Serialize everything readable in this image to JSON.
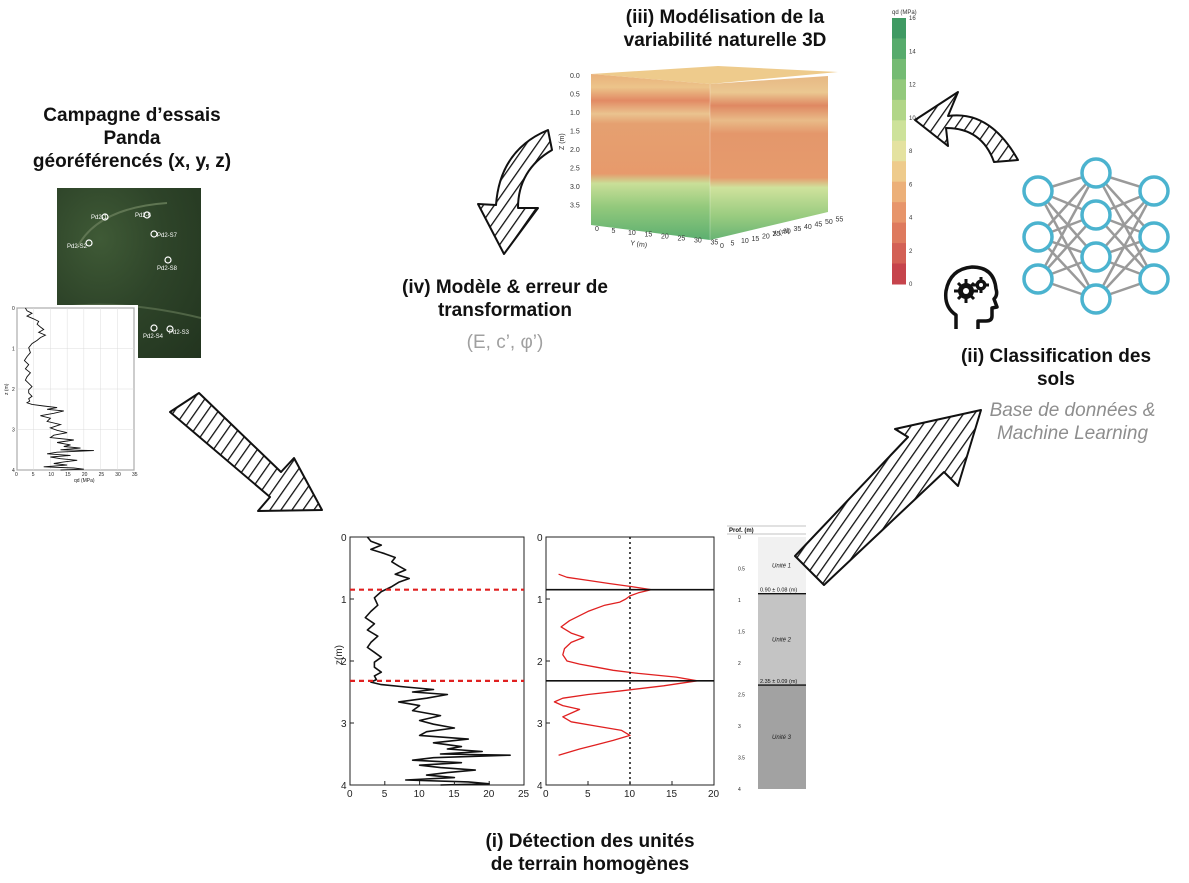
{
  "campaign": {
    "title_lines": [
      "Campagne d’essais",
      "Panda",
      "géoréférencés (x, y, z)"
    ],
    "map_labels": [
      "Pd2-1",
      "Pd2-6",
      "Pd2-S2",
      "Pd2-S7",
      "Pd2-S8",
      "Pd2-S4",
      "Pd2-S3"
    ],
    "profile_axes": {
      "xlabel": "qd (MPa)",
      "ylabel": "z (m)",
      "x_ticks": [
        "0",
        "5",
        "10",
        "15",
        "20",
        "25",
        "30",
        "35"
      ],
      "y_ticks": [
        "0",
        "1",
        "2",
        "3",
        "4"
      ]
    }
  },
  "model3d": {
    "title_lines": [
      "(iii) Modélisation de la",
      "variabilité naturelle 3D"
    ],
    "z_label": "Z (m)",
    "y_label": "Y (m)",
    "x_label": "X (m)",
    "z_ticks": [
      "0.0",
      "0.5",
      "1.0",
      "1.5",
      "2.0",
      "2.5",
      "3.0",
      "3.5"
    ],
    "y_ticks": [
      "0",
      "5",
      "10",
      "15",
      "20",
      "25",
      "30",
      "35"
    ],
    "x_ticks": [
      "0",
      "5",
      "10",
      "15",
      "20",
      "25",
      "30",
      "35",
      "40",
      "45",
      "50",
      "55"
    ],
    "colorbar": {
      "label": "qd (MPa)",
      "ticks": [
        "16",
        "14",
        "12",
        "10",
        "8",
        "6",
        "4",
        "2",
        "0"
      ],
      "colors": [
        "#3f9a63",
        "#56ab6c",
        "#74bb73",
        "#93c97c",
        "#b1d688",
        "#cde29a",
        "#e4e2a0",
        "#eecb8c",
        "#ecb079",
        "#e7956b",
        "#de7a5e",
        "#d36055",
        "#c6444c"
      ]
    }
  },
  "model_error": {
    "title_lines": [
      "(iv) Modèle & erreur de",
      "transformation"
    ],
    "params": "(E, c’, φ’)"
  },
  "classification": {
    "title_lines": [
      "(ii) Classification des",
      "sols"
    ],
    "subtitle_lines": [
      "Base de données &",
      "Machine Learning"
    ],
    "nn_color": "#4bb3cf"
  },
  "detection": {
    "title_lines": [
      "(i) Détection des unités",
      "de terrain homogènes"
    ],
    "chart_data": [
      {
        "type": "line",
        "name_hint": "qd profile",
        "xlim": [
          0,
          25
        ],
        "ylim": [
          4,
          0
        ],
        "ylabel": "z(m)",
        "x_ticks": [
          "0",
          "5",
          "10",
          "15",
          "20",
          "25"
        ],
        "y_ticks": [
          "0",
          "1",
          "2",
          "3",
          "4"
        ],
        "boundaries_depth": [
          0.85,
          2.32
        ],
        "x": [
          2.5,
          3,
          4.5,
          3,
          5,
          6.5,
          6,
          7,
          8,
          6.5,
          8.5,
          7,
          6,
          4.5,
          3.5,
          4,
          3,
          2.2,
          3.5,
          2.5,
          4,
          3,
          2.5,
          3.5,
          4.5,
          3.5,
          3.5,
          4.5,
          3.5,
          3.8,
          3,
          4.5,
          8,
          12,
          9,
          14,
          11,
          7,
          10,
          9,
          13,
          10,
          12,
          15,
          11,
          10,
          17,
          12,
          16,
          14,
          19,
          13,
          23,
          12,
          9,
          16,
          10,
          13,
          18,
          14,
          11,
          15,
          8,
          17,
          20,
          13
        ],
        "y": [
          0.0,
          0.07,
          0.13,
          0.2,
          0.27,
          0.33,
          0.4,
          0.47,
          0.53,
          0.6,
          0.67,
          0.73,
          0.8,
          0.88,
          0.98,
          1.1,
          1.2,
          1.3,
          1.4,
          1.5,
          1.6,
          1.7,
          1.78,
          1.86,
          1.94,
          2.02,
          2.1,
          2.18,
          2.24,
          2.3,
          2.34,
          2.38,
          2.42,
          2.46,
          2.5,
          2.54,
          2.6,
          2.66,
          2.72,
          2.8,
          2.88,
          2.96,
          3.02,
          3.08,
          3.14,
          3.2,
          3.26,
          3.32,
          3.38,
          3.42,
          3.46,
          3.5,
          3.52,
          3.56,
          3.6,
          3.64,
          3.68,
          3.72,
          3.76,
          3.8,
          3.84,
          3.88,
          3.92,
          3.95,
          3.98,
          4.0
        ]
      },
      {
        "type": "line",
        "name_hint": "detection statistic",
        "xlim": [
          0,
          20
        ],
        "ylim": [
          4,
          0
        ],
        "threshold_x": 10,
        "boundaries_depth": [
          0.85,
          2.32
        ],
        "x_ticks": [
          "0",
          "5",
          "10",
          "15",
          "20"
        ],
        "y_ticks": [
          "0",
          "1",
          "2",
          "3",
          "4"
        ],
        "x": [
          1.5,
          2.5,
          5,
          7.5,
          10.2,
          12.5,
          11,
          10,
          9.5,
          8.8,
          7,
          5,
          2.8,
          1.8,
          3,
          4.5,
          3,
          2.2,
          2,
          2.5,
          4,
          6,
          8,
          11,
          15.5,
          18,
          14,
          9,
          5,
          2,
          1,
          2,
          4,
          3,
          2,
          3,
          6,
          9,
          10,
          8,
          6,
          4,
          2.5,
          1.5
        ],
        "y": [
          0.6,
          0.65,
          0.7,
          0.75,
          0.8,
          0.85,
          0.9,
          0.95,
          1.0,
          1.05,
          1.1,
          1.2,
          1.35,
          1.45,
          1.55,
          1.62,
          1.7,
          1.8,
          1.9,
          2.0,
          2.05,
          2.1,
          2.15,
          2.2,
          2.26,
          2.32,
          2.4,
          2.48,
          2.54,
          2.6,
          2.66,
          2.72,
          2.78,
          2.84,
          2.9,
          2.98,
          3.05,
          3.12,
          3.2,
          3.28,
          3.35,
          3.42,
          3.48,
          3.52
        ]
      }
    ],
    "units_column": {
      "header": "Prof. (m)",
      "depth_ticks": [
        "0",
        "0.5",
        "1",
        "1.5",
        "2",
        "2.5",
        "3",
        "3.5",
        "4"
      ],
      "units": [
        {
          "label": "Unité 1",
          "from": 0,
          "to": 0.9,
          "color": "#f1f1f1"
        },
        {
          "label": "Unité 2",
          "from": 0.9,
          "to": 2.35,
          "color": "#c4c4c4"
        },
        {
          "label": "Unité 3",
          "from": 2.35,
          "to": 4.0,
          "color": "#a2a2a2"
        }
      ],
      "boundary_labels": [
        "0.90 ± 0.08 (m)",
        "2.35 ± 0.09 (m)"
      ]
    }
  }
}
